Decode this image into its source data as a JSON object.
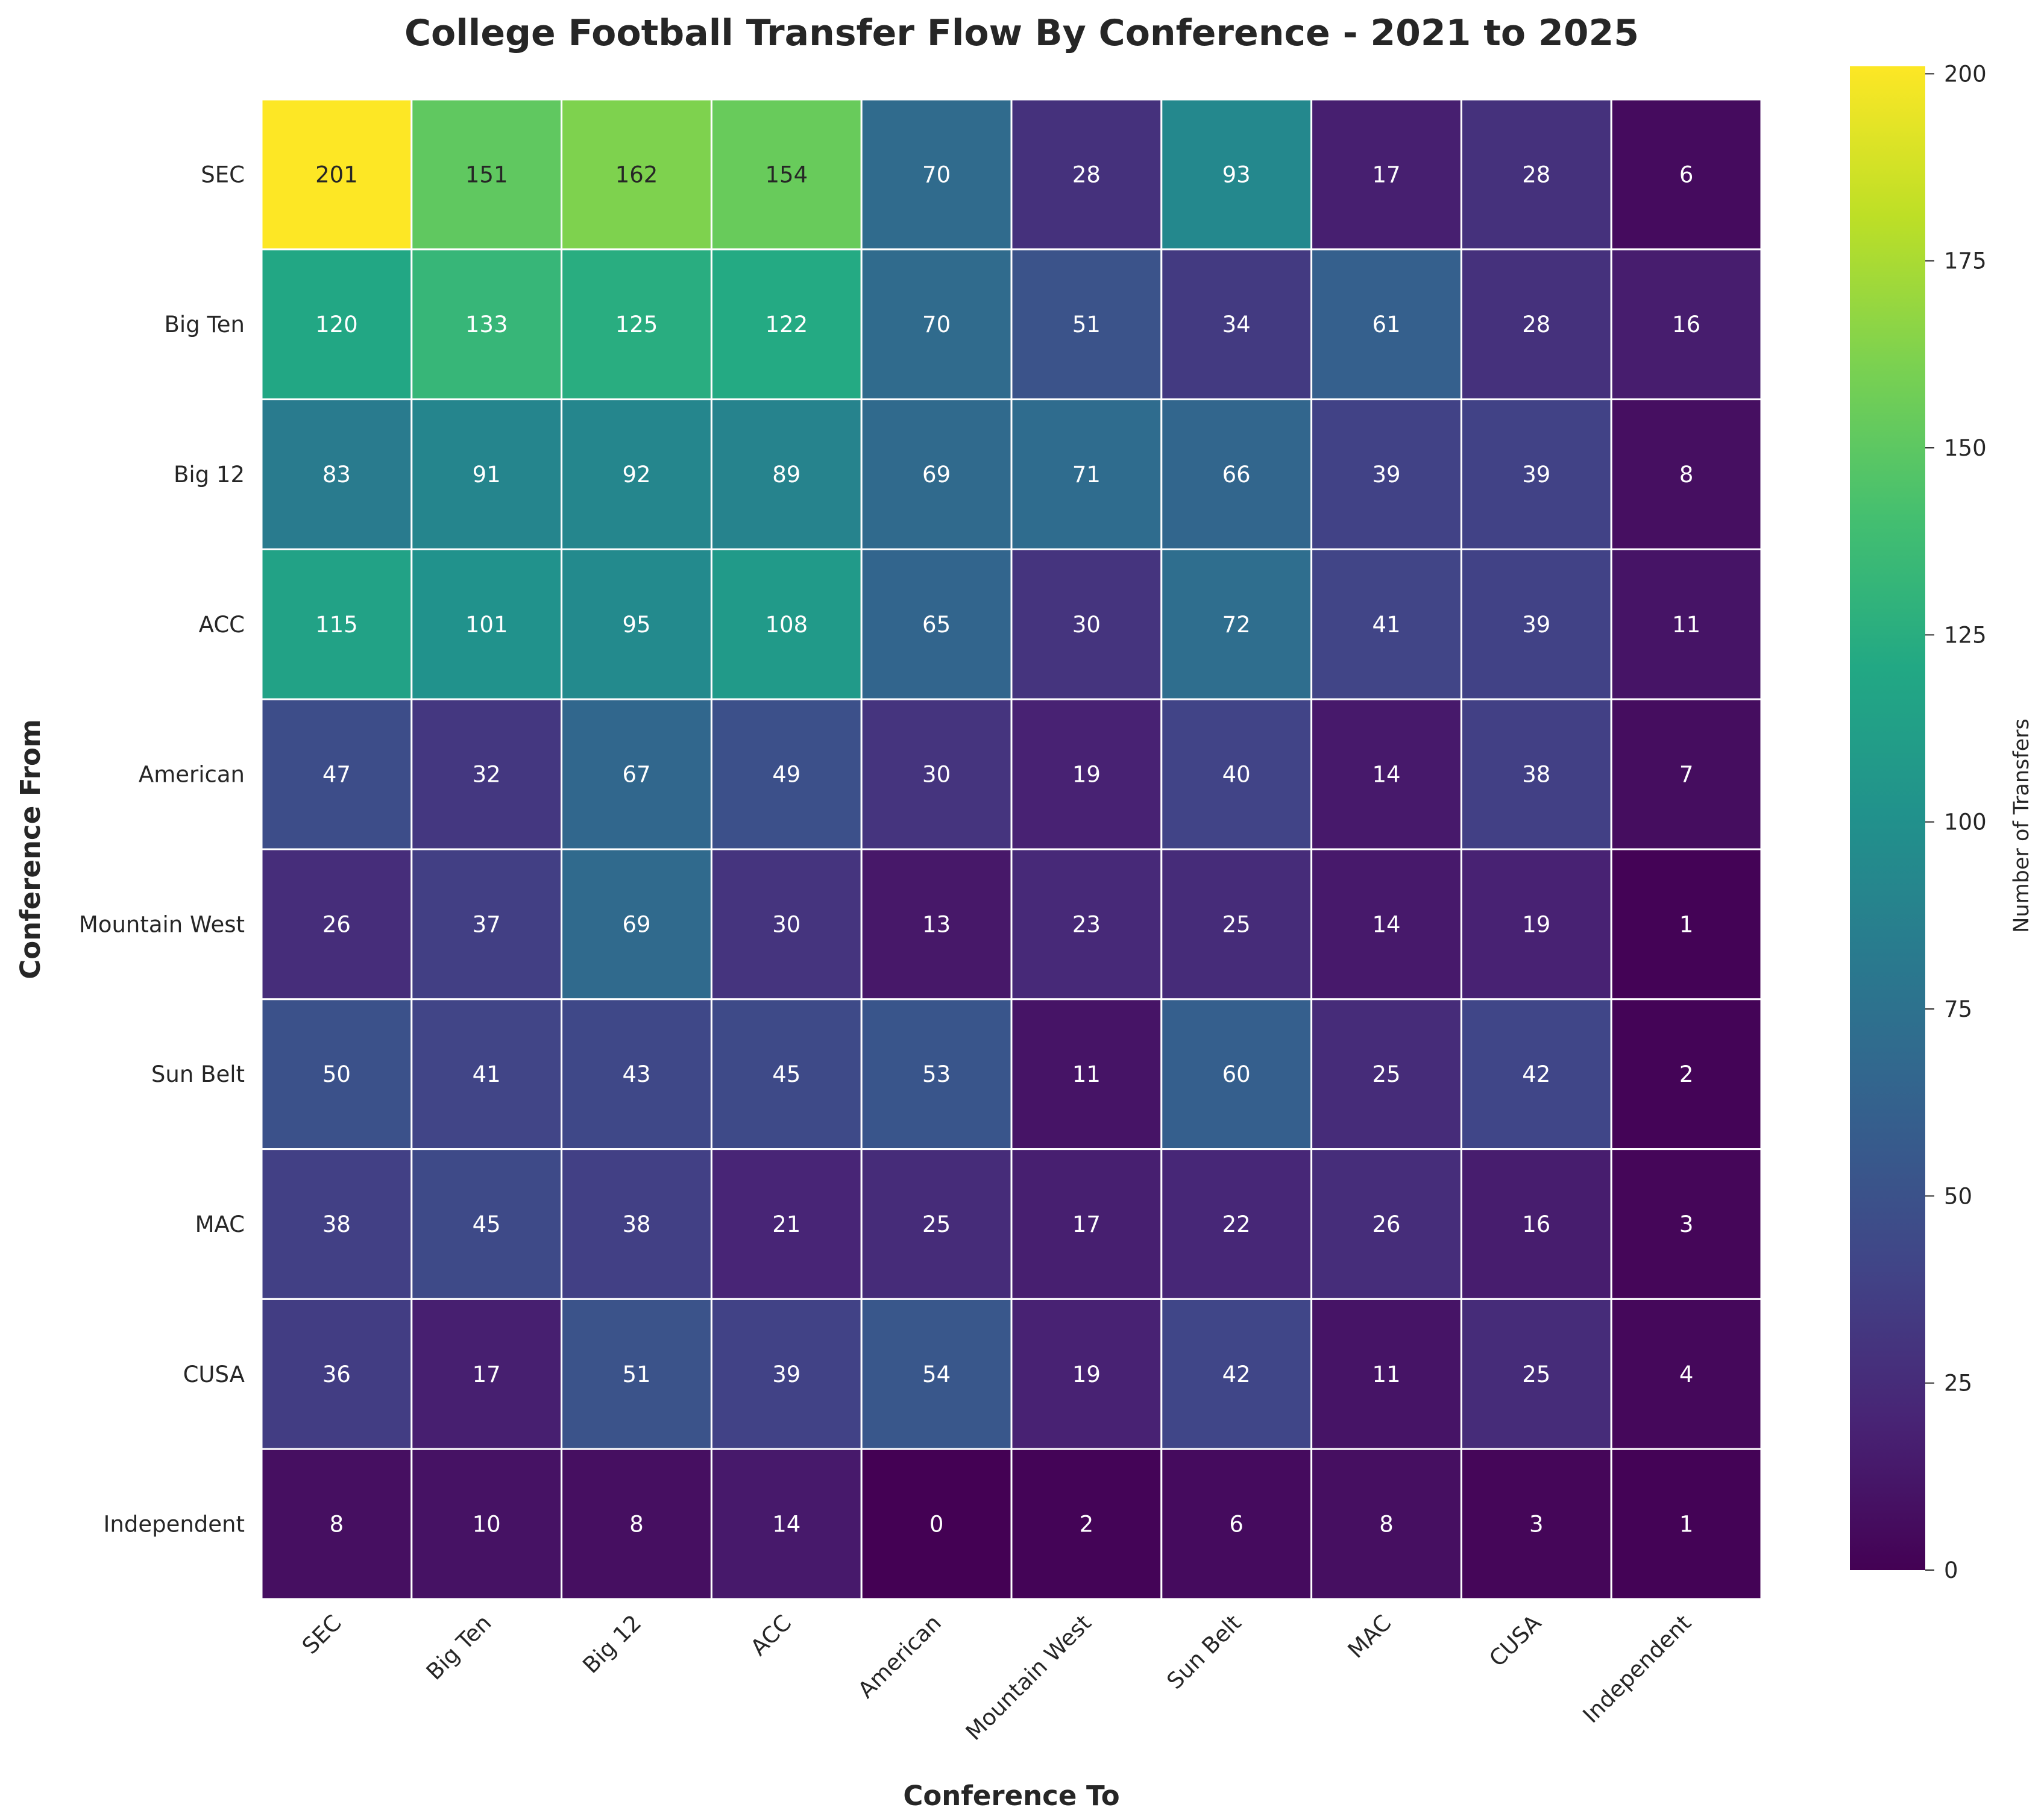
{
  "chart_data": {
    "type": "heatmap",
    "title": "College Football Transfer Flow By Conference - 2021 to 2025",
    "xlabel": "Conference To",
    "ylabel": "Conference From",
    "x_categories": [
      "SEC",
      "Big Ten",
      "Big 12",
      "ACC",
      "American",
      "Mountain West",
      "Sun Belt",
      "MAC",
      "CUSA",
      "Independent"
    ],
    "y_categories": [
      "SEC",
      "Big Ten",
      "Big 12",
      "ACC",
      "American",
      "Mountain West",
      "Sun Belt",
      "MAC",
      "CUSA",
      "Independent"
    ],
    "values": [
      [
        201,
        151,
        162,
        154,
        70,
        28,
        93,
        17,
        28,
        6
      ],
      [
        120,
        133,
        125,
        122,
        70,
        51,
        34,
        61,
        28,
        16
      ],
      [
        83,
        91,
        92,
        89,
        69,
        71,
        66,
        39,
        39,
        8
      ],
      [
        115,
        101,
        95,
        108,
        65,
        30,
        72,
        41,
        39,
        11
      ],
      [
        47,
        32,
        67,
        49,
        30,
        19,
        40,
        14,
        38,
        7
      ],
      [
        26,
        37,
        69,
        30,
        13,
        23,
        25,
        14,
        19,
        1
      ],
      [
        50,
        41,
        43,
        45,
        53,
        11,
        60,
        25,
        42,
        2
      ],
      [
        38,
        45,
        38,
        21,
        25,
        17,
        22,
        26,
        16,
        3
      ],
      [
        36,
        17,
        51,
        39,
        54,
        19,
        42,
        11,
        25,
        4
      ],
      [
        8,
        10,
        8,
        14,
        0,
        2,
        6,
        8,
        3,
        1
      ]
    ],
    "colormap": "viridis",
    "vmin": 0,
    "vmax": 201,
    "colorbar": {
      "label": "Number of Transfers",
      "ticks": [
        0,
        25,
        50,
        75,
        100,
        125,
        150,
        175,
        200
      ]
    },
    "annotations_shown": true
  }
}
